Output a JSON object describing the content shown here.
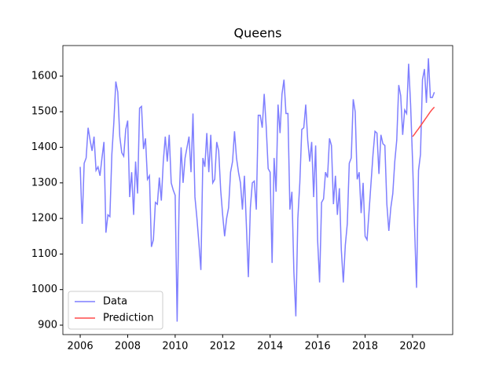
{
  "chart_data": {
    "type": "line",
    "title": "Queens",
    "xlim": [
      2005.27,
      2021.69
    ],
    "ylim": [
      873.5,
      1686
    ],
    "xticks": [
      2006,
      2008,
      2010,
      2012,
      2014,
      2016,
      2018,
      2020
    ],
    "yticks": [
      900,
      1000,
      1100,
      1200,
      1300,
      1400,
      1500,
      1600
    ],
    "legend": "lower left",
    "series": [
      {
        "name": "Data",
        "color": "#7f7fff",
        "x": [
          2006,
          2006.083,
          2006.167,
          2006.25,
          2006.333,
          2006.417,
          2006.5,
          2006.583,
          2006.667,
          2006.75,
          2006.833,
          2006.917,
          2007,
          2007.083,
          2007.167,
          2007.25,
          2007.333,
          2007.417,
          2007.5,
          2007.583,
          2007.667,
          2007.75,
          2007.833,
          2007.917,
          2008,
          2008.083,
          2008.167,
          2008.25,
          2008.333,
          2008.417,
          2008.5,
          2008.583,
          2008.667,
          2008.75,
          2008.833,
          2008.917,
          2009,
          2009.083,
          2009.167,
          2009.25,
          2009.333,
          2009.417,
          2009.5,
          2009.583,
          2009.667,
          2009.75,
          2009.833,
          2009.917,
          2010,
          2010.083,
          2010.167,
          2010.25,
          2010.333,
          2010.417,
          2010.5,
          2010.583,
          2010.667,
          2010.75,
          2010.833,
          2010.917,
          2011,
          2011.083,
          2011.167,
          2011.25,
          2011.333,
          2011.417,
          2011.5,
          2011.583,
          2011.667,
          2011.75,
          2011.833,
          2011.917,
          2012,
          2012.083,
          2012.167,
          2012.25,
          2012.333,
          2012.417,
          2012.5,
          2012.583,
          2012.667,
          2012.75,
          2012.833,
          2012.917,
          2013,
          2013.083,
          2013.167,
          2013.25,
          2013.333,
          2013.417,
          2013.5,
          2013.583,
          2013.667,
          2013.75,
          2013.833,
          2013.917,
          2014,
          2014.083,
          2014.167,
          2014.25,
          2014.333,
          2014.417,
          2014.5,
          2014.583,
          2014.667,
          2014.75,
          2014.833,
          2014.917,
          2015,
          2015.083,
          2015.167,
          2015.25,
          2015.333,
          2015.417,
          2015.5,
          2015.583,
          2015.667,
          2015.75,
          2015.833,
          2015.917,
          2016,
          2016.083,
          2016.167,
          2016.25,
          2016.333,
          2016.417,
          2016.5,
          2016.583,
          2016.667,
          2016.75,
          2016.833,
          2016.917,
          2017,
          2017.083,
          2017.167,
          2017.25,
          2017.333,
          2017.417,
          2017.5,
          2017.583,
          2017.667,
          2017.75,
          2017.833,
          2017.917,
          2018,
          2018.083,
          2018.167,
          2018.25,
          2018.333,
          2018.417,
          2018.5,
          2018.583,
          2018.667,
          2018.75,
          2018.833,
          2018.917,
          2019,
          2019.083,
          2019.167,
          2019.25,
          2019.333,
          2019.417,
          2019.5,
          2019.583,
          2019.667,
          2019.75,
          2019.833,
          2019.917,
          2020,
          2020.083,
          2020.167,
          2020.25,
          2020.333,
          2020.417,
          2020.5,
          2020.583,
          2020.667,
          2020.75,
          2020.833,
          2020.917
        ],
        "values": [
          1345,
          1185,
          1355,
          1370,
          1455,
          1420,
          1390,
          1430,
          1335,
          1345,
          1320,
          1370,
          1415,
          1160,
          1210,
          1205,
          1380,
          1470,
          1585,
          1555,
          1430,
          1385,
          1375,
          1450,
          1475,
          1260,
          1330,
          1210,
          1360,
          1270,
          1510,
          1515,
          1395,
          1425,
          1310,
          1320,
          1120,
          1140,
          1245,
          1240,
          1315,
          1250,
          1360,
          1430,
          1360,
          1435,
          1300,
          1280,
          1265,
          910,
          1250,
          1400,
          1300,
          1370,
          1400,
          1430,
          1330,
          1495,
          1260,
          1200,
          1130,
          1055,
          1370,
          1345,
          1440,
          1330,
          1435,
          1300,
          1310,
          1415,
          1390,
          1280,
          1210,
          1150,
          1200,
          1230,
          1330,
          1360,
          1445,
          1370,
          1330,
          1300,
          1225,
          1320,
          1180,
          1035,
          1230,
          1300,
          1305,
          1225,
          1490,
          1490,
          1455,
          1550,
          1460,
          1340,
          1330,
          1075,
          1370,
          1275,
          1520,
          1440,
          1550,
          1590,
          1495,
          1495,
          1225,
          1275,
          1050,
          925,
          1200,
          1300,
          1450,
          1455,
          1520,
          1420,
          1360,
          1415,
          1260,
          1405,
          1140,
          1020,
          1245,
          1255,
          1330,
          1315,
          1425,
          1405,
          1240,
          1320,
          1210,
          1285,
          1110,
          1020,
          1125,
          1185,
          1355,
          1370,
          1535,
          1500,
          1310,
          1330,
          1215,
          1300,
          1150,
          1140,
          1220,
          1300,
          1380,
          1445,
          1440,
          1325,
          1435,
          1410,
          1405,
          1240,
          1165,
          1230,
          1270,
          1360,
          1420,
          1575,
          1545,
          1435,
          1505,
          1495,
          1635,
          1520,
          1360,
          1175,
          1005,
          1335,
          1380,
          1590,
          1620,
          1525,
          1650,
          1540,
          1540,
          1555
        ]
      },
      {
        "name": "Prediction",
        "color": "#ff4c4c",
        "x": [
          2020,
          2020.083,
          2020.167,
          2020.25,
          2020.333,
          2020.417,
          2020.5,
          2020.583,
          2020.667,
          2020.75,
          2020.833,
          2020.917
        ],
        "values": [
          1430,
          1437,
          1445,
          1452,
          1460,
          1468,
          1476,
          1484,
          1492,
          1500,
          1507,
          1513
        ]
      }
    ]
  }
}
